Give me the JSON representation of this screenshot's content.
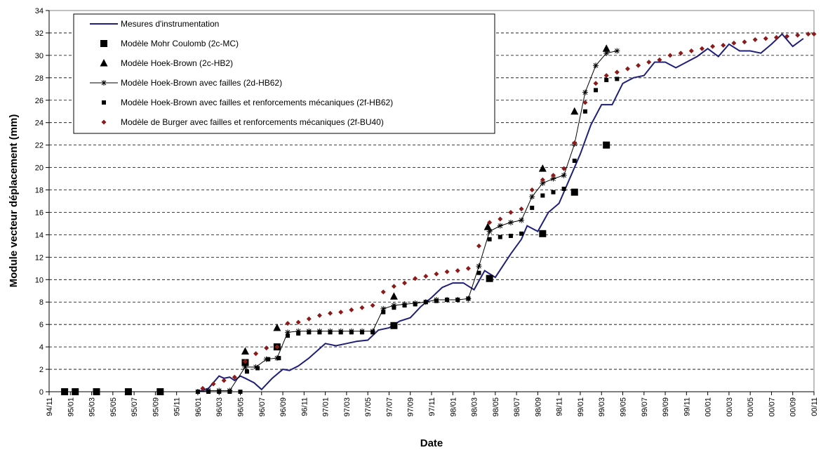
{
  "chart_data": {
    "type": "line",
    "xlabel": "Date",
    "ylabel": "Module vecteur déplacement (mm)",
    "xlim": [
      "1994-11",
      "2000-11"
    ],
    "ylim": [
      0,
      34
    ],
    "y_ticks": [
      0,
      2,
      4,
      6,
      8,
      10,
      12,
      14,
      16,
      18,
      20,
      22,
      24,
      26,
      28,
      30,
      32,
      34
    ],
    "x_ticks": [
      "94/11",
      "95/01",
      "95/03",
      "95/05",
      "95/07",
      "95/09",
      "95/11",
      "96/01",
      "96/03",
      "96/05",
      "96/07",
      "96/09",
      "96/11",
      "97/01",
      "97/03",
      "97/05",
      "97/07",
      "97/09",
      "97/11",
      "98/01",
      "98/03",
      "98/05",
      "98/07",
      "98/09",
      "98/11",
      "99/01",
      "99/03",
      "99/05",
      "99/07",
      "99/09",
      "99/11",
      "00/01",
      "00/03",
      "00/05",
      "00/07",
      "00/09",
      "00/11"
    ],
    "grid": "horizontal-dashed",
    "legend_position": "top-left",
    "series": [
      {
        "name": "Mesures d'instrumentation",
        "marker": "line",
        "color": "#1f1f7a",
        "points": [
          [
            "1996-01-01",
            0
          ],
          [
            "1996-02-01",
            0.3
          ],
          [
            "1996-03-01",
            1.4
          ],
          [
            "1996-03-15",
            1.2
          ],
          [
            "1996-04-01",
            1.3
          ],
          [
            "1996-04-15",
            1.0
          ],
          [
            "1996-05-01",
            1.4
          ],
          [
            "1996-05-15",
            1.2
          ],
          [
            "1996-06-10",
            0.8
          ],
          [
            "1996-07-01",
            0.2
          ],
          [
            "1996-08-01",
            1.2
          ],
          [
            "1996-09-01",
            2.0
          ],
          [
            "1996-09-20",
            1.9
          ],
          [
            "1996-10-15",
            2.3
          ],
          [
            "1996-11-15",
            3.0
          ],
          [
            "1997-01-01",
            4.3
          ],
          [
            "1997-02-01",
            4.1
          ],
          [
            "1997-03-01",
            4.3
          ],
          [
            "1997-04-01",
            4.5
          ],
          [
            "1997-05-01",
            4.6
          ],
          [
            "1997-06-01",
            5.5
          ],
          [
            "1997-07-01",
            5.7
          ],
          [
            "1997-08-01",
            6.3
          ],
          [
            "1997-09-01",
            6.6
          ],
          [
            "1997-10-01",
            7.6
          ],
          [
            "1997-11-01",
            8.4
          ],
          [
            "1997-12-01",
            9.3
          ],
          [
            "1998-01-01",
            9.7
          ],
          [
            "1998-02-01",
            9.7
          ],
          [
            "1998-03-01",
            9.1
          ],
          [
            "1998-04-01",
            10.8
          ],
          [
            "1998-05-01",
            10.2
          ],
          [
            "1998-06-15",
            12.3
          ],
          [
            "1998-07-15",
            13.6
          ],
          [
            "1998-08-01",
            14.8
          ],
          [
            "1998-09-01",
            14.3
          ],
          [
            "1998-10-01",
            16.0
          ],
          [
            "1998-11-01",
            16.8
          ],
          [
            "1998-12-01",
            19.0
          ],
          [
            "1999-01-01",
            21.2
          ],
          [
            "1999-02-01",
            23.8
          ],
          [
            "1999-03-01",
            25.6
          ],
          [
            "1999-04-01",
            25.6
          ],
          [
            "1999-05-01",
            27.5
          ],
          [
            "1999-06-01",
            28.0
          ],
          [
            "1999-07-01",
            28.2
          ],
          [
            "1999-08-01",
            29.4
          ],
          [
            "1999-09-01",
            29.4
          ],
          [
            "1999-10-01",
            28.9
          ],
          [
            "1999-11-01",
            29.4
          ],
          [
            "1999-12-01",
            29.9
          ],
          [
            "2000-01-01",
            30.6
          ],
          [
            "2000-02-01",
            29.9
          ],
          [
            "2000-03-01",
            31.0
          ],
          [
            "2000-04-01",
            30.4
          ],
          [
            "2000-05-01",
            30.4
          ],
          [
            "2000-06-01",
            30.2
          ],
          [
            "2000-07-01",
            31.0
          ],
          [
            "2000-08-01",
            31.9
          ],
          [
            "2000-09-01",
            30.8
          ],
          [
            "2000-10-01",
            31.5
          ]
        ]
      },
      {
        "name": "Modèle Mohr Coulomb (2c-MC)",
        "marker": "square-large",
        "color": "#000000",
        "points": [
          [
            "1994-12-15",
            0
          ],
          [
            "1995-01-15",
            0
          ],
          [
            "1995-03-15",
            0
          ],
          [
            "1995-06-15",
            0
          ],
          [
            "1995-09-15",
            0
          ],
          [
            "1996-05-15",
            2.6
          ],
          [
            "1996-08-15",
            4.0
          ],
          [
            "1997-07-15",
            5.9
          ],
          [
            "1998-04-15",
            10.1
          ],
          [
            "1998-09-15",
            14.1
          ],
          [
            "1998-12-15",
            17.8
          ],
          [
            "1999-03-15",
            22.0
          ]
        ]
      },
      {
        "name": "Modèle Hoek-Brown (2c-HB2)",
        "marker": "triangle",
        "color": "#000000",
        "points": [
          [
            "1996-05-15",
            3.6
          ],
          [
            "1996-08-15",
            5.7
          ],
          [
            "1997-07-15",
            8.5
          ],
          [
            "1998-04-10",
            14.7
          ],
          [
            "1998-09-15",
            19.9
          ],
          [
            "1998-12-15",
            25.0
          ],
          [
            "1999-03-15",
            30.6
          ]
        ]
      },
      {
        "name": "Modèle Hoek-Brown avec failles (2d-HB62)",
        "marker": "star-line",
        "color": "#000000",
        "points": [
          [
            "1996-01-01",
            0
          ],
          [
            "1996-02-01",
            0.1
          ],
          [
            "1996-03-01",
            0.1
          ],
          [
            "1996-04-01",
            0.1
          ],
          [
            "1996-05-15",
            2.2
          ],
          [
            "1996-06-15",
            2.2
          ],
          [
            "1996-07-15",
            2.9
          ],
          [
            "1996-08-15",
            3.0
          ],
          [
            "1996-09-15",
            5.3
          ],
          [
            "1996-10-15",
            5.4
          ],
          [
            "1996-11-15",
            5.4
          ],
          [
            "1996-12-15",
            5.4
          ],
          [
            "1997-01-15",
            5.4
          ],
          [
            "1997-02-15",
            5.4
          ],
          [
            "1997-03-15",
            5.4
          ],
          [
            "1997-04-15",
            5.4
          ],
          [
            "1997-05-15",
            5.4
          ],
          [
            "1997-06-15",
            7.4
          ],
          [
            "1997-07-15",
            7.7
          ],
          [
            "1997-08-15",
            7.8
          ],
          [
            "1997-09-15",
            7.9
          ],
          [
            "1997-10-15",
            8.0
          ],
          [
            "1997-11-15",
            8.2
          ],
          [
            "1997-12-15",
            8.2
          ],
          [
            "1998-01-15",
            8.2
          ],
          [
            "1998-02-15",
            8.3
          ],
          [
            "1998-03-15",
            11.2
          ],
          [
            "1998-04-15",
            14.3
          ],
          [
            "1998-05-15",
            14.8
          ],
          [
            "1998-06-15",
            15.1
          ],
          [
            "1998-07-15",
            15.3
          ],
          [
            "1998-08-15",
            17.4
          ],
          [
            "1998-09-15",
            18.6
          ],
          [
            "1998-10-15",
            19.0
          ],
          [
            "1998-11-15",
            19.3
          ],
          [
            "1998-12-15",
            22.1
          ],
          [
            "1999-01-15",
            26.7
          ],
          [
            "1999-02-15",
            29.1
          ],
          [
            "1999-03-15",
            30.2
          ],
          [
            "1999-04-15",
            30.4
          ]
        ]
      },
      {
        "name": "Modèle Hoek-Brown avec failles et renforcements mécaniques (2f-HB62)",
        "marker": "square-small",
        "color": "#000000",
        "points": [
          [
            "1996-01-01",
            0
          ],
          [
            "1996-02-01",
            0
          ],
          [
            "1996-03-01",
            0
          ],
          [
            "1996-04-01",
            0
          ],
          [
            "1996-05-01",
            0
          ],
          [
            "1996-05-20",
            1.8
          ],
          [
            "1996-06-20",
            2.1
          ],
          [
            "1996-07-20",
            2.9
          ],
          [
            "1996-08-20",
            3.0
          ],
          [
            "1996-09-15",
            5.0
          ],
          [
            "1996-10-15",
            5.2
          ],
          [
            "1996-11-15",
            5.3
          ],
          [
            "1996-12-15",
            5.3
          ],
          [
            "1997-01-15",
            5.3
          ],
          [
            "1997-02-15",
            5.3
          ],
          [
            "1997-03-15",
            5.3
          ],
          [
            "1997-04-15",
            5.3
          ],
          [
            "1997-05-15",
            5.3
          ],
          [
            "1997-06-15",
            7.1
          ],
          [
            "1997-07-15",
            7.5
          ],
          [
            "1997-08-15",
            7.7
          ],
          [
            "1997-09-15",
            7.8
          ],
          [
            "1997-10-15",
            8.0
          ],
          [
            "1997-11-15",
            8.1
          ],
          [
            "1997-12-15",
            8.2
          ],
          [
            "1998-01-15",
            8.2
          ],
          [
            "1998-02-15",
            8.3
          ],
          [
            "1998-03-15",
            10.6
          ],
          [
            "1998-04-15",
            13.6
          ],
          [
            "1998-05-15",
            13.8
          ],
          [
            "1998-06-15",
            13.9
          ],
          [
            "1998-07-15",
            14.1
          ],
          [
            "1998-08-15",
            16.4
          ],
          [
            "1998-09-15",
            17.5
          ],
          [
            "1998-10-15",
            17.8
          ],
          [
            "1998-11-15",
            18.1
          ],
          [
            "1998-12-15",
            20.6
          ],
          [
            "1999-01-15",
            25.0
          ],
          [
            "1999-02-15",
            26.9
          ],
          [
            "1999-03-15",
            27.8
          ],
          [
            "1999-04-15",
            27.9
          ]
        ]
      },
      {
        "name": "Modèle de Burger avec failles et renforcements mécaniques (2f-BU40)",
        "marker": "diamond",
        "color": "#8b1a1a",
        "points": [
          [
            "1996-01-15",
            0.3
          ],
          [
            "1996-02-15",
            0.7
          ],
          [
            "1996-03-15",
            1.0
          ],
          [
            "1996-04-15",
            1.3
          ],
          [
            "1996-05-15",
            2.7
          ],
          [
            "1996-06-15",
            3.4
          ],
          [
            "1996-07-15",
            3.9
          ],
          [
            "1996-08-15",
            4.0
          ],
          [
            "1996-09-15",
            6.1
          ],
          [
            "1996-10-15",
            6.2
          ],
          [
            "1996-11-15",
            6.5
          ],
          [
            "1996-12-15",
            6.8
          ],
          [
            "1997-01-15",
            7.0
          ],
          [
            "1997-02-15",
            7.1
          ],
          [
            "1997-03-15",
            7.3
          ],
          [
            "1997-04-15",
            7.5
          ],
          [
            "1997-05-15",
            7.7
          ],
          [
            "1997-06-15",
            8.9
          ],
          [
            "1997-07-15",
            9.4
          ],
          [
            "1997-08-15",
            9.7
          ],
          [
            "1997-09-15",
            10.1
          ],
          [
            "1997-10-15",
            10.3
          ],
          [
            "1997-11-15",
            10.5
          ],
          [
            "1997-12-15",
            10.7
          ],
          [
            "1998-01-15",
            10.8
          ],
          [
            "1998-02-15",
            11.0
          ],
          [
            "1998-03-15",
            13.0
          ],
          [
            "1998-04-15",
            15.1
          ],
          [
            "1998-05-15",
            15.4
          ],
          [
            "1998-06-15",
            16.0
          ],
          [
            "1998-07-15",
            16.3
          ],
          [
            "1998-08-15",
            18.0
          ],
          [
            "1998-09-15",
            18.9
          ],
          [
            "1998-10-15",
            19.3
          ],
          [
            "1998-11-15",
            19.9
          ],
          [
            "1998-12-15",
            22.2
          ],
          [
            "1999-01-15",
            25.8
          ],
          [
            "1999-02-15",
            27.5
          ],
          [
            "1999-03-15",
            28.2
          ],
          [
            "1999-04-15",
            28.5
          ],
          [
            "1999-05-15",
            28.8
          ],
          [
            "1999-06-15",
            29.1
          ],
          [
            "1999-07-15",
            29.4
          ],
          [
            "1999-08-15",
            29.6
          ],
          [
            "1999-09-15",
            30.0
          ],
          [
            "1999-10-15",
            30.2
          ],
          [
            "1999-11-15",
            30.4
          ],
          [
            "1999-12-15",
            30.6
          ],
          [
            "2000-01-15",
            30.8
          ],
          [
            "2000-02-15",
            30.9
          ],
          [
            "2000-03-15",
            31.1
          ],
          [
            "2000-04-15",
            31.2
          ],
          [
            "2000-05-15",
            31.4
          ],
          [
            "2000-06-15",
            31.5
          ],
          [
            "2000-07-15",
            31.6
          ],
          [
            "2000-08-15",
            31.7
          ],
          [
            "2000-09-15",
            31.8
          ],
          [
            "2000-10-15",
            31.9
          ],
          [
            "2000-11-01",
            31.9
          ]
        ]
      }
    ]
  }
}
